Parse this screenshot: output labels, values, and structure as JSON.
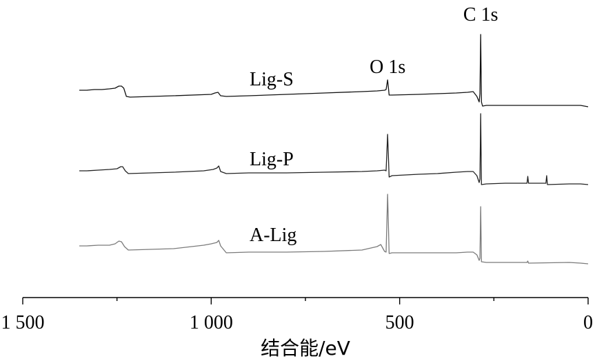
{
  "chart_data": {
    "type": "line",
    "xlabel": "结合能/eV",
    "xlim": [
      1500,
      0
    ],
    "x_ticks": [
      {
        "value": 1500,
        "label": "1 500"
      },
      {
        "value": 1000,
        "label": "1 000"
      },
      {
        "value": 500,
        "label": "500"
      },
      {
        "value": 0,
        "label": "0"
      }
    ],
    "y_axis_shown": false,
    "grid": false,
    "stacked_offset_plot": true,
    "peak_labels": [
      {
        "text": "C 1s",
        "x": 285
      },
      {
        "text": "O 1s",
        "x": 532
      }
    ],
    "series": [
      {
        "name": "Lig-S",
        "color": "#111111",
        "points": [
          [
            1350,
            131
          ],
          [
            1330,
            131
          ],
          [
            1310,
            130
          ],
          [
            1290,
            130
          ],
          [
            1270,
            129
          ],
          [
            1255,
            128
          ],
          [
            1245,
            125
          ],
          [
            1238,
            125
          ],
          [
            1232,
            128
          ],
          [
            1225,
            140
          ],
          [
            1215,
            141
          ],
          [
            1100,
            139
          ],
          [
            1000,
            137
          ],
          [
            990,
            135
          ],
          [
            982,
            134
          ],
          [
            975,
            139
          ],
          [
            960,
            140
          ],
          [
            900,
            139
          ],
          [
            800,
            137
          ],
          [
            700,
            135
          ],
          [
            600,
            133
          ],
          [
            560,
            132
          ],
          [
            540,
            131
          ],
          [
            536,
            130
          ],
          [
            532,
            116
          ],
          [
            528,
            138
          ],
          [
            520,
            138
          ],
          [
            450,
            137
          ],
          [
            400,
            136
          ],
          [
            350,
            135
          ],
          [
            320,
            134
          ],
          [
            305,
            133
          ],
          [
            295,
            140
          ],
          [
            289,
            148
          ],
          [
            287,
            136
          ],
          [
            285,
            50
          ],
          [
            283,
            148
          ],
          [
            280,
            154
          ],
          [
            270,
            153
          ],
          [
            200,
            153
          ],
          [
            150,
            153
          ],
          [
            100,
            153
          ],
          [
            50,
            153
          ],
          [
            20,
            153
          ],
          [
            0,
            155
          ]
        ]
      },
      {
        "name": "Lig-P",
        "color": "#222222",
        "points": [
          [
            1350,
            248
          ],
          [
            1330,
            248
          ],
          [
            1300,
            247
          ],
          [
            1270,
            246
          ],
          [
            1250,
            245
          ],
          [
            1240,
            242
          ],
          [
            1235,
            242
          ],
          [
            1228,
            248
          ],
          [
            1220,
            252
          ],
          [
            1100,
            250
          ],
          [
            1020,
            248
          ],
          [
            995,
            246
          ],
          [
            985,
            244
          ],
          [
            980,
            241
          ],
          [
            975,
            249
          ],
          [
            960,
            252
          ],
          [
            900,
            251
          ],
          [
            800,
            251
          ],
          [
            700,
            250
          ],
          [
            600,
            249
          ],
          [
            560,
            248
          ],
          [
            540,
            247
          ],
          [
            536,
            248
          ],
          [
            532,
            195
          ],
          [
            528,
            257
          ],
          [
            520,
            255
          ],
          [
            450,
            253
          ],
          [
            400,
            252
          ],
          [
            350,
            250
          ],
          [
            320,
            249
          ],
          [
            305,
            249
          ],
          [
            295,
            255
          ],
          [
            289,
            265
          ],
          [
            287,
            260
          ],
          [
            285,
            165
          ],
          [
            283,
            268
          ],
          [
            270,
            267
          ],
          [
            220,
            266
          ],
          [
            162,
            266
          ],
          [
            160,
            256
          ],
          [
            158,
            266
          ],
          [
            112,
            266
          ],
          [
            110,
            255
          ],
          [
            108,
            268
          ],
          [
            50,
            267
          ],
          [
            20,
            267
          ],
          [
            0,
            268
          ]
        ]
      },
      {
        "name": "A-Lig",
        "color": "#7a7a7a",
        "points": [
          [
            1350,
            357
          ],
          [
            1330,
            357
          ],
          [
            1300,
            356
          ],
          [
            1270,
            356
          ],
          [
            1255,
            354
          ],
          [
            1245,
            350
          ],
          [
            1238,
            351
          ],
          [
            1230,
            358
          ],
          [
            1220,
            363
          ],
          [
            1100,
            361
          ],
          [
            1020,
            356
          ],
          [
            1000,
            354
          ],
          [
            985,
            352
          ],
          [
            980,
            349
          ],
          [
            975,
            357
          ],
          [
            960,
            367
          ],
          [
            900,
            366
          ],
          [
            800,
            366
          ],
          [
            700,
            365
          ],
          [
            600,
            363
          ],
          [
            560,
            358
          ],
          [
            550,
            355
          ],
          [
            540,
            365
          ],
          [
            536,
            366
          ],
          [
            532,
            282
          ],
          [
            528,
            368
          ],
          [
            520,
            367
          ],
          [
            450,
            367
          ],
          [
            400,
            367
          ],
          [
            350,
            367
          ],
          [
            320,
            366
          ],
          [
            305,
            366
          ],
          [
            295,
            370
          ],
          [
            289,
            378
          ],
          [
            287,
            375
          ],
          [
            285,
            300
          ],
          [
            283,
            380
          ],
          [
            270,
            381
          ],
          [
            220,
            381
          ],
          [
            162,
            381
          ],
          [
            160,
            379
          ],
          [
            158,
            382
          ],
          [
            50,
            381
          ],
          [
            20,
            382
          ],
          [
            0,
            383
          ]
        ]
      }
    ]
  }
}
